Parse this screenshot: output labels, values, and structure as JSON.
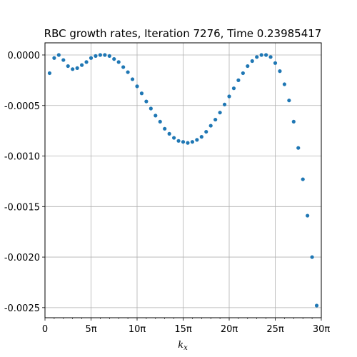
{
  "chart_data": {
    "type": "scatter",
    "title": "RBC growth rates, Iteration 7276, Time 0.23985417",
    "xlabel": "k",
    "xlabel_subscript": "x",
    "ylabel": "",
    "xlim": [
      0,
      30
    ],
    "ylim": [
      -0.0026,
      0.00012
    ],
    "x_unit": "π",
    "grid": true,
    "legend": "none",
    "marker_color": "#1f77b4",
    "xticks": [
      {
        "value": 0,
        "label": "0"
      },
      {
        "value": 5,
        "label": "5π"
      },
      {
        "value": 10,
        "label": "10π"
      },
      {
        "value": 15,
        "label": "15π"
      },
      {
        "value": 20,
        "label": "20π"
      },
      {
        "value": 25,
        "label": "25π"
      },
      {
        "value": 30,
        "label": "30π"
      }
    ],
    "yticks": [
      {
        "value": 0.0,
        "label": "0.0000"
      },
      {
        "value": -0.0005,
        "label": "-0.0005"
      },
      {
        "value": -0.001,
        "label": "-0.0010"
      },
      {
        "value": -0.0015,
        "label": "-0.0015"
      },
      {
        "value": -0.002,
        "label": "-0.0020"
      },
      {
        "value": -0.0025,
        "label": "-0.0025"
      }
    ],
    "series": [
      {
        "x": [
          0.5,
          1.0,
          1.5,
          2.0,
          2.5,
          3.0,
          3.5,
          4.0,
          4.5,
          5.0,
          5.5,
          6.0,
          6.5,
          7.0,
          7.5,
          8.0,
          8.5,
          9.0,
          9.5,
          10.0,
          10.5,
          11.0,
          11.5,
          12.0,
          12.5,
          13.0,
          13.5,
          14.0,
          14.5,
          15.0,
          15.5,
          16.0,
          16.5,
          17.0,
          17.5,
          18.0,
          18.5,
          19.0,
          19.5,
          20.0,
          20.5,
          21.0,
          21.5,
          22.0,
          22.5,
          23.0,
          23.5,
          24.0,
          24.5,
          25.0,
          25.5,
          26.0,
          26.5,
          27.0,
          27.5,
          28.0,
          28.5,
          29.0,
          29.5
        ],
        "y": [
          -0.00018,
          -3e-05,
          0.0,
          -5e-05,
          -0.00011,
          -0.00014,
          -0.00013,
          -0.0001,
          -7e-05,
          -3e-05,
          -1e-05,
          0.0,
          0.0,
          -1e-05,
          -4e-05,
          -7e-05,
          -0.00012,
          -0.00017,
          -0.00024,
          -0.00031,
          -0.00038,
          -0.00046,
          -0.00053,
          -0.0006,
          -0.00066,
          -0.00073,
          -0.00078,
          -0.00082,
          -0.00085,
          -0.00086,
          -0.00087,
          -0.00086,
          -0.00084,
          -0.00081,
          -0.00076,
          -0.0007,
          -0.00064,
          -0.00057,
          -0.00049,
          -0.00041,
          -0.00033,
          -0.00025,
          -0.00018,
          -0.00011,
          -6e-05,
          -2e-05,
          0.0,
          0.0,
          -2e-05,
          -8e-05,
          -0.00016,
          -0.00029,
          -0.00045,
          -0.00066,
          -0.00092,
          -0.00123,
          -0.00159,
          -0.002,
          -0.00248
        ]
      }
    ]
  }
}
